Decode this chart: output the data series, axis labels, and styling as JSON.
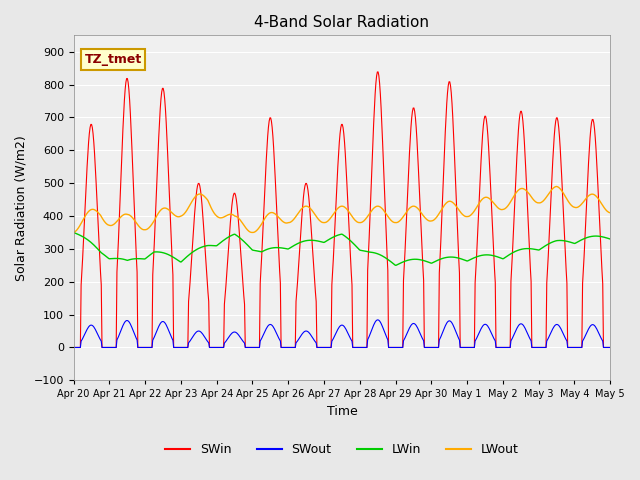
{
  "title": "4-Band Solar Radiation",
  "xlabel": "Time",
  "ylabel": "Solar Radiation (W/m2)",
  "ylim": [
    -100,
    950
  ],
  "yticks": [
    -100,
    0,
    100,
    200,
    300,
    400,
    500,
    600,
    700,
    800,
    900
  ],
  "x_labels": [
    "Apr 20",
    "Apr 21",
    "Apr 22",
    "Apr 23",
    "Apr 24",
    "Apr 25",
    "Apr 26",
    "Apr 27",
    "Apr 28",
    "Apr 29",
    "Apr 30",
    "May 1",
    "May 2",
    "May 3",
    "May 4",
    "May 5"
  ],
  "colors": {
    "SWin": "#ff0000",
    "SWout": "#0000ff",
    "LWin": "#00cc00",
    "LWout": "#ffaa00"
  },
  "annotation_text": "TZ_tmet",
  "annotation_box_color": "#ffffcc",
  "annotation_box_edge": "#cc9900",
  "background_color": "#e8e8e8",
  "plot_bg_color": "#f0f0f0",
  "n_days": 15,
  "points_per_day": 48,
  "SWin_peaks": [
    680,
    820,
    790,
    500,
    470,
    700,
    500,
    680,
    840,
    730,
    810,
    705,
    720,
    700,
    695
  ],
  "LWin_knots_x": [
    0,
    0.05,
    0.1,
    0.15,
    0.2,
    0.25,
    0.3,
    0.35,
    0.4,
    0.45,
    0.5,
    0.55,
    0.6,
    0.65,
    0.7,
    0.75,
    0.8,
    0.85,
    0.9,
    0.95,
    1.0
  ],
  "LWin_knots_y": [
    350,
    280,
    250,
    280,
    260,
    300,
    330,
    280,
    300,
    315,
    330,
    280,
    250,
    255,
    260,
    265,
    270,
    290,
    310,
    320,
    330
  ],
  "LWout_knots_x": [
    0,
    0.05,
    0.1,
    0.15,
    0.2,
    0.25,
    0.3,
    0.35,
    0.4,
    0.45,
    0.5,
    0.55,
    0.6,
    0.65,
    0.7,
    0.75,
    0.8,
    0.85,
    0.9,
    0.95,
    1.0
  ],
  "LWout_knots_y": [
    350,
    380,
    355,
    360,
    400,
    425,
    350,
    350,
    380,
    380,
    380,
    380,
    380,
    380,
    395,
    400,
    420,
    440,
    440,
    420,
    410
  ]
}
